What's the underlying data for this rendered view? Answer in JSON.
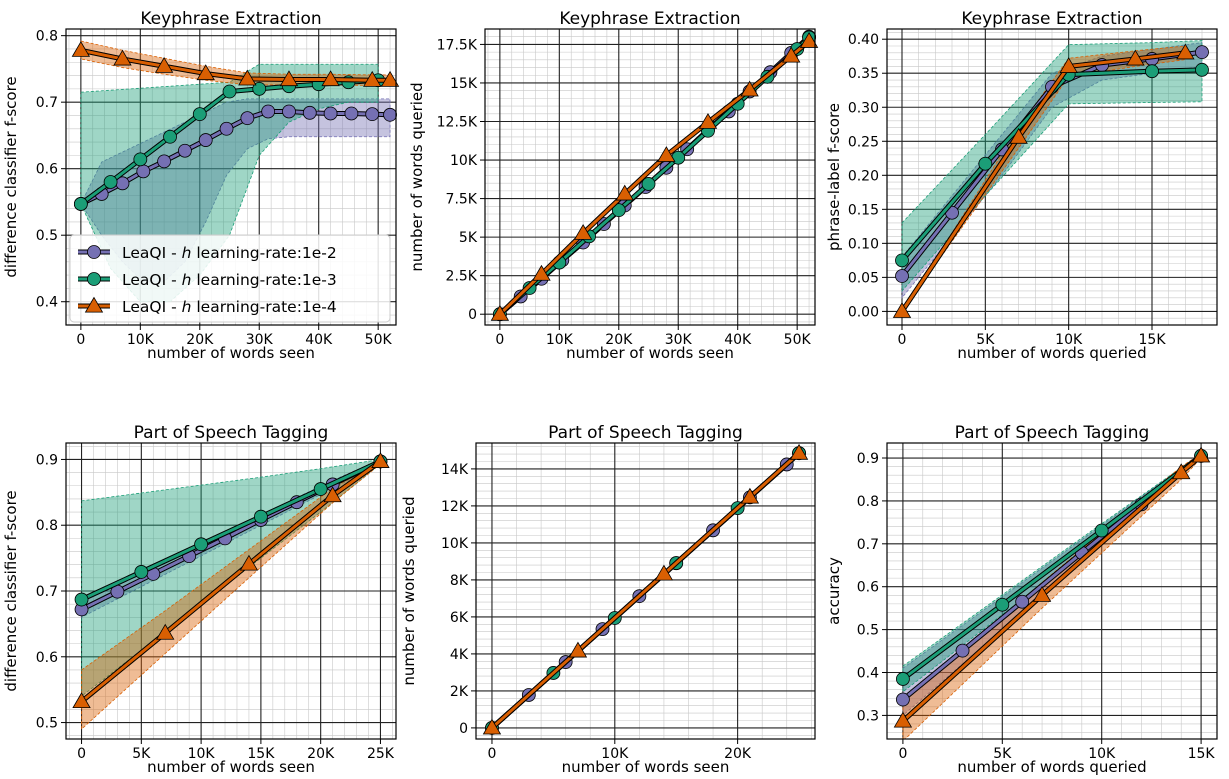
{
  "figure": {
    "colors": {
      "lr_1e2": "#7570b3",
      "lr_1e3": "#1b9e77",
      "lr_1e4": "#d95f02"
    }
  },
  "legend": {
    "placement": "lower-left of first panel",
    "entries": [
      {
        "prefix": "LeaQI - ",
        "italic": "h",
        "suffix": " learning-rate:1e-2",
        "marker": "circle",
        "color": "#7570b3"
      },
      {
        "prefix": "LeaQI - ",
        "italic": "h",
        "suffix": " learning-rate:1e-3",
        "marker": "circle",
        "color": "#1b9e77"
      },
      {
        "prefix": "LeaQI - ",
        "italic": "h",
        "suffix": " learning-rate:1e-4",
        "marker": "triangle",
        "color": "#d95f02"
      }
    ]
  },
  "chart_data": [
    {
      "type": "line",
      "title": "Keyphrase Extraction",
      "xlabel": "number of words seen",
      "ylabel": "difference classifier f-score",
      "xlim": [
        -2500,
        53000
      ],
      "ylim": [
        0.365,
        0.81
      ],
      "xticks": [
        0,
        10000,
        20000,
        30000,
        40000,
        50000
      ],
      "xticklabels": [
        "0",
        "10K",
        "20K",
        "30K",
        "40K",
        "50K"
      ],
      "yticks": [
        0.4,
        0.5,
        0.6,
        0.7,
        0.8
      ],
      "yticklabels": [
        "0.4",
        "0.5",
        "0.6",
        "0.7",
        "0.8"
      ],
      "grid": true,
      "series": [
        {
          "name": "LeaQI - h learning-rate:1e-2",
          "marker": "circle",
          "color": "#7570b3",
          "x": [
            0,
            3500,
            7000,
            10500,
            14000,
            17500,
            21000,
            24500,
            28000,
            31500,
            35000,
            38500,
            42000,
            45500,
            49000,
            52000
          ],
          "y": [
            0.547,
            0.562,
            0.578,
            0.596,
            0.611,
            0.627,
            0.643,
            0.66,
            0.676,
            0.686,
            0.686,
            0.684,
            0.683,
            0.683,
            0.682,
            0.681
          ],
          "lower": [
            0.547,
            0.5,
            0.46,
            0.43,
            0.43,
            0.46,
            0.52,
            0.59,
            0.63,
            0.645,
            0.648,
            0.648,
            0.648,
            0.648,
            0.648,
            0.648
          ],
          "upper": [
            0.547,
            0.61,
            0.625,
            0.64,
            0.655,
            0.67,
            0.685,
            0.7,
            0.705,
            0.705,
            0.705,
            0.705,
            0.705,
            0.705,
            0.705,
            0.705
          ]
        },
        {
          "name": "LeaQI - h learning-rate:1e-3",
          "marker": "circle",
          "color": "#1b9e77",
          "x": [
            0,
            5000,
            10000,
            15000,
            20000,
            25000,
            30000,
            35000,
            40000,
            45000,
            50000
          ],
          "y": [
            0.547,
            0.58,
            0.614,
            0.648,
            0.682,
            0.716,
            0.72,
            0.724,
            0.727,
            0.73,
            0.733
          ],
          "lower": [
            0.547,
            0.45,
            0.4,
            0.4,
            0.44,
            0.5,
            0.62,
            0.67,
            0.69,
            0.7,
            0.7
          ],
          "upper": [
            0.715,
            0.718,
            0.721,
            0.724,
            0.727,
            0.73,
            0.757,
            0.757,
            0.757,
            0.757,
            0.757
          ]
        },
        {
          "name": "LeaQI - h learning-rate:1e-4",
          "marker": "triangle",
          "color": "#d95f02",
          "x": [
            0,
            7000,
            14000,
            21000,
            28000,
            35000,
            42000,
            49000,
            52000
          ],
          "y": [
            0.778,
            0.765,
            0.754,
            0.743,
            0.735,
            0.734,
            0.734,
            0.733,
            0.733
          ],
          "lower": [
            0.765,
            0.752,
            0.742,
            0.733,
            0.726,
            0.726,
            0.726,
            0.725,
            0.725
          ],
          "upper": [
            0.792,
            0.778,
            0.766,
            0.754,
            0.744,
            0.742,
            0.742,
            0.741,
            0.741
          ]
        }
      ]
    },
    {
      "type": "line",
      "title": "Keyphrase Extraction",
      "xlabel": "number of words seen",
      "ylabel": "number of words queried",
      "xlim": [
        -2500,
        53000
      ],
      "ylim": [
        -700,
        18500
      ],
      "xticks": [
        0,
        10000,
        20000,
        30000,
        40000,
        50000
      ],
      "xticklabels": [
        "0",
        "10K",
        "20K",
        "30K",
        "40K",
        "50K"
      ],
      "yticks": [
        0,
        2500,
        5000,
        7500,
        10000,
        12500,
        15000,
        17500
      ],
      "yticklabels": [
        "0",
        "2.5K",
        "5K",
        "7.5K",
        "10K",
        "12.5K",
        "15K",
        "17.5K"
      ],
      "grid": true,
      "series": [
        {
          "name": "LeaQI - h learning-rate:1e-2",
          "marker": "circle",
          "color": "#7570b3",
          "x": [
            0,
            3500,
            7000,
            10500,
            14000,
            17500,
            21000,
            24500,
            28000,
            31500,
            35000,
            38500,
            42000,
            45500,
            49000,
            52000
          ],
          "y": [
            0,
            1150,
            2300,
            3500,
            4650,
            5850,
            7050,
            8250,
            9500,
            10700,
            11950,
            13150,
            14450,
            15700,
            16950,
            18000
          ]
        },
        {
          "name": "LeaQI - h learning-rate:1e-3",
          "marker": "circle",
          "color": "#1b9e77",
          "x": [
            0,
            5000,
            10000,
            15000,
            20000,
            25000,
            30000,
            35000,
            40000,
            45000,
            50000,
            52000
          ],
          "y": [
            0,
            1700,
            3350,
            5050,
            6750,
            8450,
            10150,
            11900,
            13650,
            15400,
            17200,
            17950
          ]
        },
        {
          "name": "LeaQI - h learning-rate:1e-4",
          "marker": "triangle",
          "color": "#d95f02",
          "x": [
            0,
            7000,
            14000,
            21000,
            28000,
            35000,
            42000,
            49000,
            52000
          ],
          "y": [
            0,
            2600,
            5250,
            7800,
            10300,
            12450,
            14550,
            16750,
            17700
          ]
        }
      ]
    },
    {
      "type": "line",
      "title": "Keyphrase Extraction",
      "xlabel": "number of words queried",
      "ylabel": "phrase-label f-score",
      "xlim": [
        -900,
        18900
      ],
      "ylim": [
        -0.02,
        0.415
      ],
      "xticks": [
        0,
        5000,
        10000,
        15000
      ],
      "xticklabels": [
        "0",
        "5K",
        "10K",
        "15K"
      ],
      "yticks": [
        0.0,
        0.05,
        0.1,
        0.15,
        0.2,
        0.25,
        0.3,
        0.35,
        0.4
      ],
      "yticklabels": [
        "0.00",
        "0.05",
        "0.10",
        "0.15",
        "0.20",
        "0.25",
        "0.30",
        "0.35",
        "0.40"
      ],
      "grid": true,
      "series": [
        {
          "name": "LeaQI - h learning-rate:1e-2",
          "marker": "circle",
          "color": "#7570b3",
          "x": [
            0,
            3000,
            6000,
            9000,
            12000,
            15000,
            18000
          ],
          "y": [
            0.052,
            0.145,
            0.238,
            0.33,
            0.362,
            0.371,
            0.381
          ],
          "lower": [
            0.02,
            0.11,
            0.2,
            0.3,
            0.34,
            0.35,
            0.36
          ],
          "upper": [
            0.08,
            0.17,
            0.26,
            0.35,
            0.375,
            0.385,
            0.395
          ]
        },
        {
          "name": "LeaQI - h learning-rate:1e-3",
          "marker": "circle",
          "color": "#1b9e77",
          "x": [
            0,
            5000,
            10000,
            15000,
            18000
          ],
          "y": [
            0.075,
            0.217,
            0.348,
            0.353,
            0.355
          ],
          "lower": [
            0.03,
            0.17,
            0.305,
            0.307,
            0.308
          ],
          "upper": [
            0.13,
            0.26,
            0.392,
            0.395,
            0.398
          ]
        },
        {
          "name": "LeaQI - h learning-rate:1e-4",
          "marker": "triangle",
          "color": "#d95f02",
          "x": [
            0,
            7000,
            10000,
            14000,
            17000
          ],
          "y": [
            0.0,
            0.256,
            0.36,
            0.371,
            0.38
          ],
          "lower": [
            0.0,
            0.24,
            0.345,
            0.36,
            0.37
          ],
          "upper": [
            0.0,
            0.27,
            0.372,
            0.383,
            0.39
          ]
        }
      ]
    },
    {
      "type": "line",
      "title": "Part of Speech Tagging",
      "xlabel": "number of words seen",
      "ylabel": "difference classifier f-score",
      "xlim": [
        -1300,
        26300
      ],
      "ylim": [
        0.475,
        0.925
      ],
      "xticks": [
        0,
        5000,
        10000,
        15000,
        20000,
        25000
      ],
      "xticklabels": [
        "0",
        "5K",
        "10K",
        "15K",
        "20K",
        "25K"
      ],
      "yticks": [
        0.5,
        0.6,
        0.7,
        0.8,
        0.9
      ],
      "yticklabels": [
        "0.5",
        "0.6",
        "0.7",
        "0.8",
        "0.9"
      ],
      "grid": true,
      "series": [
        {
          "name": "LeaQI - h learning-rate:1e-2",
          "marker": "circle",
          "color": "#7570b3",
          "x": [
            0,
            3000,
            6000,
            9000,
            12000,
            15000,
            18000,
            21000,
            25000
          ],
          "y": [
            0.672,
            0.699,
            0.726,
            0.753,
            0.78,
            0.808,
            0.835,
            0.862,
            0.897
          ],
          "lower": [
            0.66,
            0.688,
            0.716,
            0.744,
            0.772,
            0.8,
            0.828,
            0.856,
            0.893
          ],
          "upper": [
            0.685,
            0.71,
            0.736,
            0.762,
            0.788,
            0.815,
            0.842,
            0.868,
            0.9
          ]
        },
        {
          "name": "LeaQI - h learning-rate:1e-3",
          "marker": "circle",
          "color": "#1b9e77",
          "x": [
            0,
            5000,
            10000,
            15000,
            20000,
            25000
          ],
          "y": [
            0.687,
            0.729,
            0.771,
            0.813,
            0.855,
            0.897
          ],
          "lower": [
            0.54,
            0.61,
            0.68,
            0.75,
            0.82,
            0.893
          ],
          "upper": [
            0.837,
            0.849,
            0.861,
            0.873,
            0.886,
            0.9
          ]
        },
        {
          "name": "LeaQI - h learning-rate:1e-4",
          "marker": "triangle",
          "color": "#d95f02",
          "x": [
            0,
            7000,
            14000,
            21000,
            25000
          ],
          "y": [
            0.532,
            0.636,
            0.741,
            0.845,
            0.897
          ],
          "lower": [
            0.49,
            0.605,
            0.72,
            0.834,
            0.893
          ],
          "upper": [
            0.58,
            0.67,
            0.763,
            0.856,
            0.9
          ]
        }
      ]
    },
    {
      "type": "line",
      "title": "Part of Speech Tagging",
      "xlabel": "number of words seen",
      "ylabel": "number of words queried",
      "xlim": [
        -1300,
        26300
      ],
      "ylim": [
        -600,
        15400
      ],
      "xticks": [
        0,
        10000,
        20000
      ],
      "xticklabels": [
        "0",
        "10K",
        "20K"
      ],
      "yticks": [
        0,
        2000,
        4000,
        6000,
        8000,
        10000,
        12000,
        14000
      ],
      "yticklabels": [
        "0",
        "2K",
        "4K",
        "6K",
        "8K",
        "10K",
        "12K",
        "14K"
      ],
      "grid": true,
      "series": [
        {
          "name": "LeaQI - h learning-rate:1e-2",
          "marker": "circle",
          "color": "#7570b3",
          "x": [
            0,
            3000,
            6000,
            9000,
            12000,
            15000,
            18000,
            21000,
            24000,
            25000
          ],
          "y": [
            0,
            1780,
            3560,
            5340,
            7120,
            8900,
            10680,
            12460,
            14240,
            14850
          ]
        },
        {
          "name": "LeaQI - h learning-rate:1e-3",
          "marker": "circle",
          "color": "#1b9e77",
          "x": [
            0,
            5000,
            10000,
            15000,
            20000,
            25000
          ],
          "y": [
            0,
            2970,
            5940,
            8910,
            11880,
            14850
          ]
        },
        {
          "name": "LeaQI - h learning-rate:1e-4",
          "marker": "triangle",
          "color": "#d95f02",
          "x": [
            0,
            7000,
            14000,
            21000,
            25000
          ],
          "y": [
            0,
            4160,
            8320,
            12480,
            14850
          ]
        }
      ]
    },
    {
      "type": "line",
      "title": "Part of Speech Tagging",
      "xlabel": "number of words queried",
      "ylabel": "accuracy",
      "xlim": [
        -800,
        15800
      ],
      "ylim": [
        0.245,
        0.935
      ],
      "xticks": [
        0,
        5000,
        10000,
        15000
      ],
      "xticklabels": [
        "0",
        "5K",
        "10K",
        "15K"
      ],
      "yticks": [
        0.3,
        0.4,
        0.5,
        0.6,
        0.7,
        0.8,
        0.9
      ],
      "yticklabels": [
        "0.3",
        "0.4",
        "0.5",
        "0.6",
        "0.7",
        "0.8",
        "0.9"
      ],
      "grid": true,
      "series": [
        {
          "name": "LeaQI - h learning-rate:1e-2",
          "marker": "circle",
          "color": "#7570b3",
          "x": [
            0,
            3000,
            6000,
            9000,
            12000,
            15000
          ],
          "y": [
            0.337,
            0.451,
            0.565,
            0.679,
            0.792,
            0.905
          ],
          "lower": [
            0.3,
            0.42,
            0.54,
            0.66,
            0.78,
            0.9
          ],
          "upper": [
            0.41,
            0.51,
            0.61,
            0.71,
            0.81,
            0.91
          ]
        },
        {
          "name": "LeaQI - h learning-rate:1e-3",
          "marker": "circle",
          "color": "#1b9e77",
          "x": [
            0,
            5000,
            10000,
            15000
          ],
          "y": [
            0.385,
            0.558,
            0.731,
            0.905
          ],
          "lower": [
            0.355,
            0.535,
            0.715,
            0.9
          ],
          "upper": [
            0.415,
            0.581,
            0.747,
            0.91
          ]
        },
        {
          "name": "LeaQI - h learning-rate:1e-4",
          "marker": "triangle",
          "color": "#d95f02",
          "x": [
            0,
            7000,
            14000,
            15000
          ],
          "y": [
            0.287,
            0.58,
            0.866,
            0.905
          ],
          "lower": [
            0.24,
            0.55,
            0.85,
            0.9
          ],
          "upper": [
            0.33,
            0.61,
            0.88,
            0.91
          ]
        }
      ]
    }
  ]
}
